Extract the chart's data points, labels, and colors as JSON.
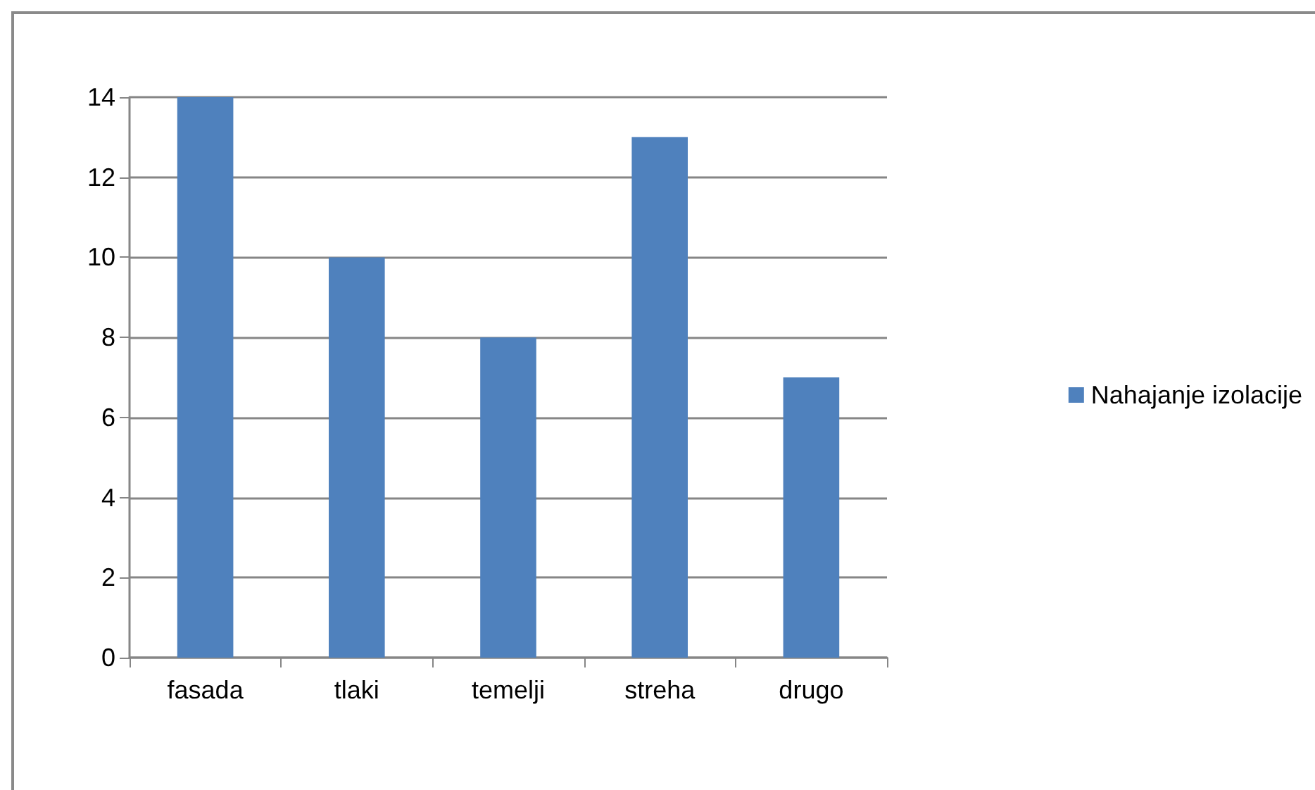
{
  "chart_data": {
    "type": "bar",
    "categories": [
      "fasada",
      "tlaki",
      "temelji",
      "streha",
      "drugo"
    ],
    "series": [
      {
        "name": "Nahajanje izolacije",
        "color": "#4f81bd",
        "values": [
          14,
          10,
          8,
          13,
          7
        ]
      }
    ],
    "ylim": [
      0,
      14
    ],
    "yticks": [
      0,
      2,
      4,
      6,
      8,
      10,
      12,
      14
    ],
    "grid": "y",
    "legend": "right"
  }
}
